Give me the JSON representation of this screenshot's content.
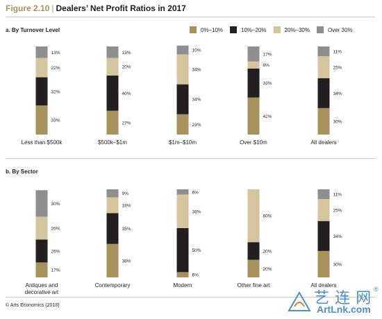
{
  "figure": {
    "number": "Figure 2.10",
    "separator": "|",
    "title": "Dealers’ Net Profit Ratios in 2017"
  },
  "legend": [
    {
      "label": "0%–10%",
      "color": "#a8925c"
    },
    {
      "label": "10%–20%",
      "color": "#231f20"
    },
    {
      "label": "20%–30%",
      "color": "#d4c59c"
    },
    {
      "label": "Over 30%",
      "color": "#8e8e90"
    }
  ],
  "chart_data": [
    {
      "type": "bar",
      "stacked": true,
      "title": "a. By Turnover Level",
      "categories": [
        "Less than $500k",
        "$500k–$1m",
        "$1m–$10m",
        "Over $10m",
        "All dealers"
      ],
      "series": [
        {
          "name": "0%–10%",
          "values": [
            33,
            27,
            23,
            42,
            30
          ],
          "labels": [
            "33%",
            "27%",
            "23%",
            "42%",
            "30%"
          ]
        },
        {
          "name": "10%–20%",
          "values": [
            32,
            40,
            34,
            33,
            34
          ],
          "labels": [
            "32%",
            "40%",
            "34%",
            "33%",
            "34%"
          ]
        },
        {
          "name": "20%–30%",
          "values": [
            22,
            20,
            34,
            8,
            25
          ],
          "labels": [
            "22%",
            "20%",
            "34%",
            "8%",
            "25%"
          ]
        },
        {
          "name": "Over 30%",
          "values": [
            13,
            13,
            10,
            17,
            11
          ],
          "labels": [
            "13%",
            "13%",
            "10%",
            "17%",
            "11%"
          ]
        }
      ]
    },
    {
      "type": "bar",
      "stacked": true,
      "title": "b. By Sector",
      "categories": [
        [
          "Antiques and",
          "decorative art"
        ],
        [
          "Contemporary"
        ],
        [
          "Modern"
        ],
        [
          "Other fine art"
        ],
        [
          "All dealers"
        ]
      ],
      "series": [
        {
          "name": "0%–10%",
          "values": [
            17,
            38,
            6,
            20,
            30
          ],
          "labels": [
            "17%",
            "38%",
            "6%",
            "20%",
            "30%"
          ]
        },
        {
          "name": "10%–20%",
          "values": [
            26,
            35,
            50,
            20,
            34
          ],
          "labels": [
            "26%",
            "35%",
            "50%",
            "20%",
            "34%"
          ]
        },
        {
          "name": "20%–30%",
          "values": [
            26,
            18,
            38,
            60,
            25
          ],
          "labels": [
            "26%",
            "18%",
            "38%",
            "60%",
            "25%"
          ]
        },
        {
          "name": "Over 30%",
          "values": [
            30,
            9,
            6,
            0,
            11
          ],
          "labels": [
            "30%",
            "9%",
            "6%",
            "",
            "11%"
          ]
        }
      ]
    }
  ],
  "footer": "© Arts Economics (2018)",
  "watermark": {
    "text": "艺 连 网",
    "url": "ArtLnk.com",
    "reg": "®"
  }
}
